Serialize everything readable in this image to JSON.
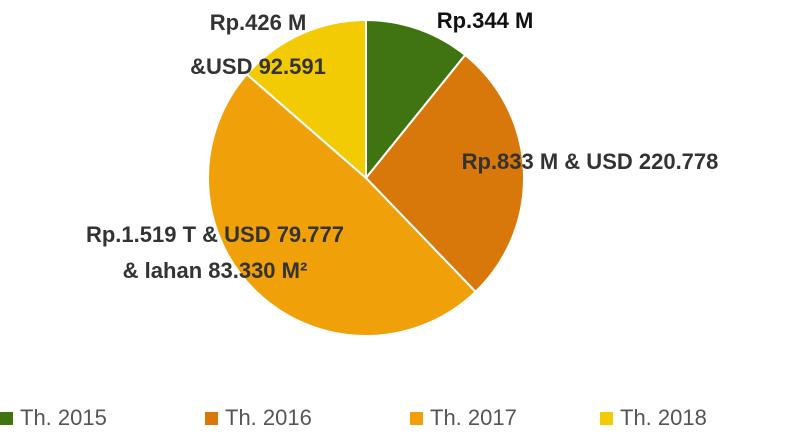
{
  "chart_data": {
    "type": "pie",
    "categories": [
      "Th. 2015",
      "Th. 2016",
      "Th. 2017",
      "Th. 2018"
    ],
    "values": [
      10.8,
      27,
      48.6,
      13.6
    ],
    "colors": [
      "#3f7410",
      "#d8780a",
      "#f0a10a",
      "#f2cb05"
    ],
    "data_labels": [
      [
        "Rp.344 M"
      ],
      [
        "Rp.833 M & USD 220.778"
      ],
      [
        "Rp.1.519 T & USD 79.777",
        "& lahan 83.330 M²"
      ],
      [
        "Rp.426 M",
        "&USD 92.591"
      ]
    ],
    "legend": "bottom"
  }
}
